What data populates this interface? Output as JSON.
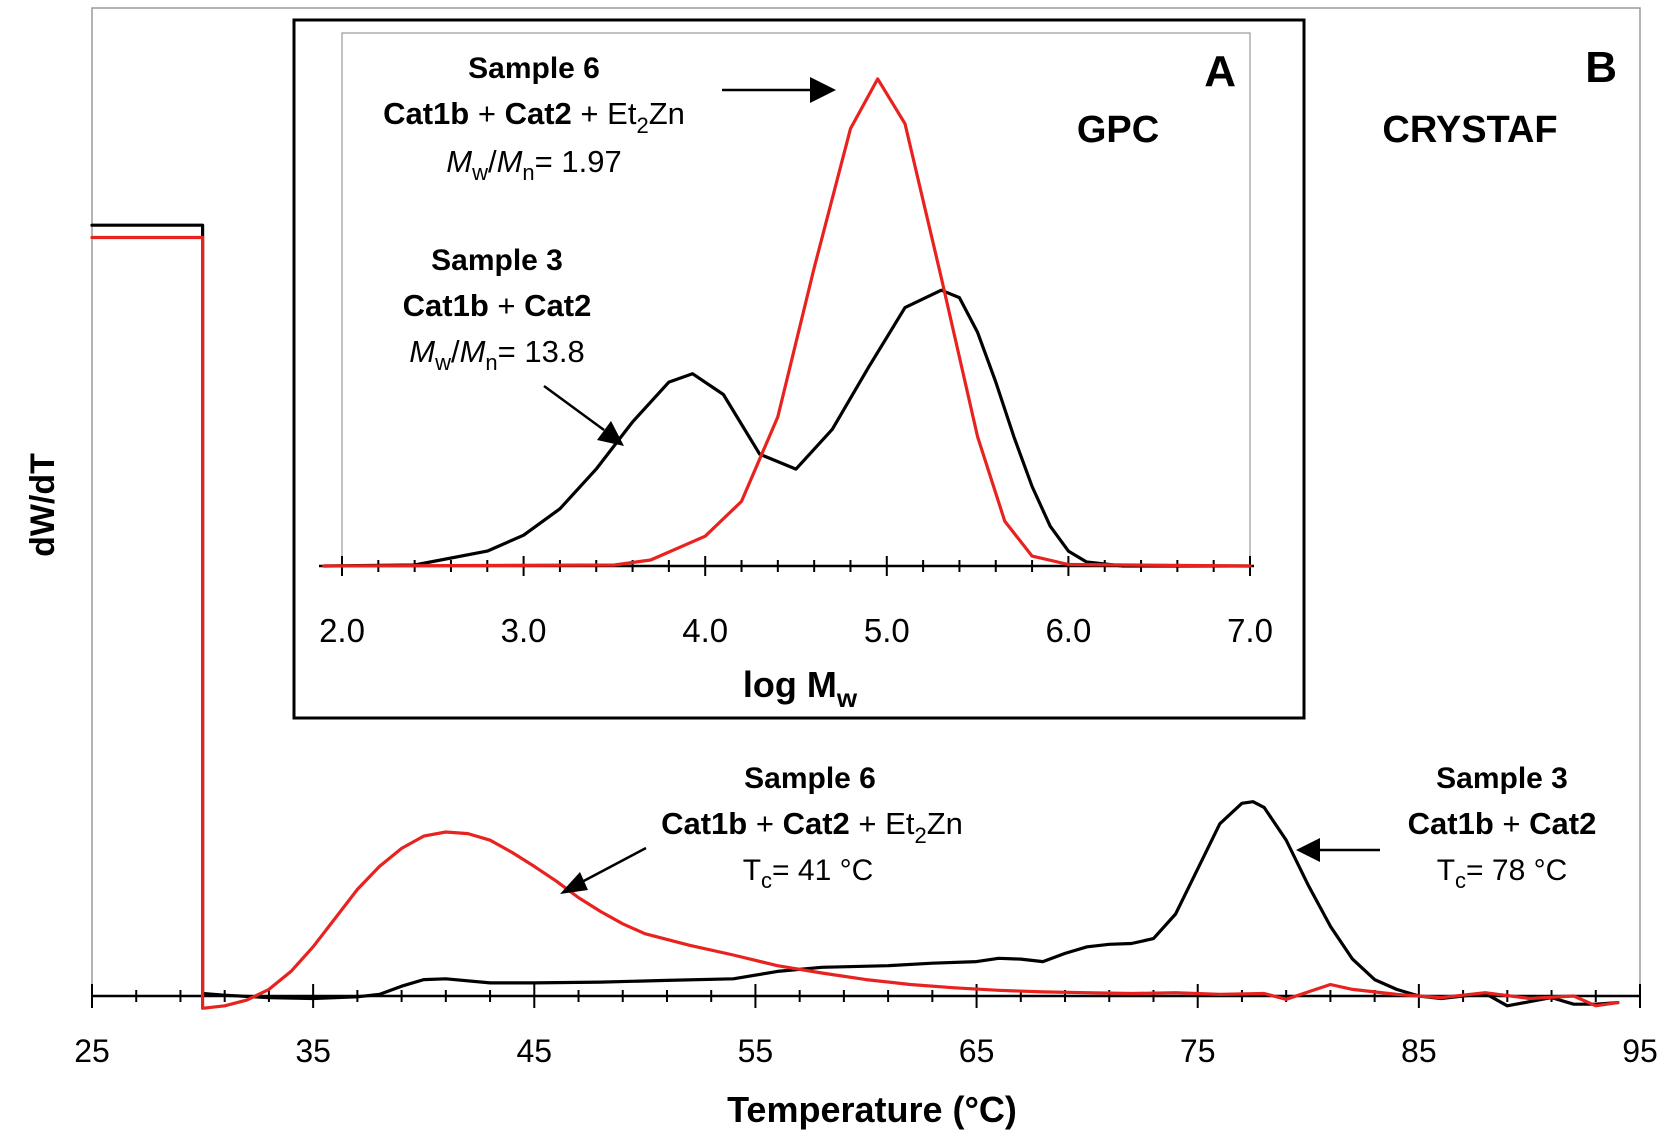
{
  "chart_data": [
    {
      "panel": "B",
      "type": "line",
      "title": "CRYSTAF",
      "xlabel": "Temperature (°C)",
      "ylabel": "dW/dT",
      "xlim": [
        25,
        95
      ],
      "ylim": [
        0,
        1
      ],
      "xticks": [
        25,
        35,
        45,
        55,
        65,
        75,
        85,
        95
      ],
      "grid": false,
      "colors": {
        "sample3": "#000000",
        "sample6": "#e8231f"
      },
      "series": [
        {
          "key": "sample3",
          "color": "#000000",
          "x": [
            25,
            30,
            30,
            31,
            33,
            35,
            37,
            38,
            39,
            40,
            41,
            43,
            45,
            48,
            51,
            54,
            56,
            58,
            61,
            63,
            65,
            66,
            67,
            68,
            69,
            70,
            71,
            72,
            73,
            74,
            75,
            76,
            77,
            77.5,
            78,
            79,
            80,
            81,
            82,
            83,
            84,
            85,
            86,
            87,
            88,
            89,
            90,
            91,
            92,
            93,
            94
          ],
          "y": [
            0.94,
            0.94,
            0.003,
            0.001,
            -0.002,
            -0.003,
            -0.001,
            0.002,
            0.012,
            0.02,
            0.021,
            0.016,
            0.016,
            0.017,
            0.019,
            0.021,
            0.03,
            0.035,
            0.037,
            0.04,
            0.042,
            0.046,
            0.045,
            0.042,
            0.052,
            0.06,
            0.063,
            0.064,
            0.07,
            0.1,
            0.155,
            0.21,
            0.235,
            0.237,
            0.23,
            0.19,
            0.135,
            0.085,
            0.045,
            0.02,
            0.008,
            0.0,
            -0.003,
            0.0,
            0.003,
            -0.012,
            -0.007,
            -0.002,
            -0.01,
            -0.01,
            -0.008
          ]
        },
        {
          "key": "sample6",
          "color": "#e8231f",
          "x": [
            25,
            30,
            30,
            31,
            32,
            33,
            34,
            35,
            36,
            37,
            38,
            39,
            40,
            41,
            42,
            43,
            44,
            45,
            46,
            47,
            48,
            49,
            50,
            52,
            54,
            56,
            58,
            60,
            62,
            64,
            66,
            68,
            70,
            72,
            74,
            76,
            78,
            79,
            80,
            81,
            82,
            84,
            86,
            88,
            90,
            92,
            93,
            94
          ],
          "y": [
            0.925,
            0.925,
            -0.015,
            -0.012,
            -0.005,
            0.008,
            0.03,
            0.06,
            0.095,
            0.13,
            0.158,
            0.18,
            0.195,
            0.2,
            0.198,
            0.19,
            0.175,
            0.158,
            0.14,
            0.12,
            0.103,
            0.088,
            0.076,
            0.062,
            0.05,
            0.037,
            0.028,
            0.02,
            0.014,
            0.01,
            0.007,
            0.005,
            0.004,
            0.003,
            0.004,
            0.002,
            0.003,
            -0.004,
            0.005,
            0.014,
            0.008,
            0.002,
            -0.002,
            0.004,
            -0.003,
            0.0,
            -0.012,
            -0.008
          ]
        }
      ],
      "annotations": {
        "panel_letter": "B",
        "sample6": {
          "name": "Sample 6",
          "cat1b": "Cat1b",
          "plus": "+",
          "cat2": "Cat2",
          "et": "Et",
          "sub2": "2",
          "zn": "Zn",
          "tc_t": "T",
          "tc_sub": "c",
          "tc_val": "= 41 °C"
        },
        "sample3": {
          "name": "Sample 3",
          "cat1b": "Cat1b",
          "plus": "+",
          "cat2": "Cat2",
          "tc_t": "T",
          "tc_sub": "c",
          "tc_val": "= 78 °C"
        }
      }
    },
    {
      "panel": "A",
      "type": "line",
      "title": "GPC",
      "xlabel_main": "log M",
      "xlabel_sub": "w",
      "xlim": [
        2.0,
        7.0
      ],
      "ylim": [
        0,
        1
      ],
      "xticks": [
        2.0,
        3.0,
        4.0,
        5.0,
        6.0,
        7.0
      ],
      "grid": false,
      "series": [
        {
          "key": "sample3",
          "color": "#000000",
          "x": [
            1.9,
            2.4,
            2.8,
            3.0,
            3.2,
            3.4,
            3.6,
            3.8,
            3.93,
            4.1,
            4.3,
            4.5,
            4.7,
            4.9,
            5.1,
            5.3,
            5.4,
            5.5,
            5.6,
            5.7,
            5.8,
            5.9,
            6.0,
            6.1,
            6.3,
            7.0
          ],
          "y": [
            0.0,
            0.002,
            0.03,
            0.062,
            0.115,
            0.195,
            0.29,
            0.37,
            0.387,
            0.345,
            0.225,
            0.195,
            0.275,
            0.4,
            0.52,
            0.555,
            0.54,
            0.47,
            0.37,
            0.26,
            0.16,
            0.08,
            0.03,
            0.008,
            0.0,
            0.0
          ]
        },
        {
          "key": "sample6",
          "color": "#e8231f",
          "x": [
            1.9,
            3.5,
            3.7,
            4.0,
            4.2,
            4.4,
            4.6,
            4.8,
            4.95,
            5.1,
            5.3,
            5.5,
            5.65,
            5.8,
            6.0,
            7.0
          ],
          "y": [
            0.0,
            0.002,
            0.012,
            0.06,
            0.13,
            0.3,
            0.6,
            0.88,
            0.98,
            0.89,
            0.58,
            0.26,
            0.09,
            0.02,
            0.003,
            0.0
          ]
        }
      ],
      "annotations": {
        "panel_letter": "A",
        "sample6": {
          "name": "Sample 6",
          "cat1b": "Cat1b",
          "plus": "+",
          "cat2": "Cat2",
          "et": "Et",
          "sub2": "2",
          "zn": "Zn",
          "mw": "M",
          "w": "w",
          "slash": "/",
          "mn": "M",
          "n": "n",
          "value": "= 1.97"
        },
        "sample3": {
          "name": "Sample 3",
          "cat1b": "Cat1b",
          "plus": "+",
          "cat2": "Cat2",
          "mw": "M",
          "w": "w",
          "slash": "/",
          "mn": "M",
          "n": "n",
          "value": "= 13.8"
        }
      }
    }
  ]
}
